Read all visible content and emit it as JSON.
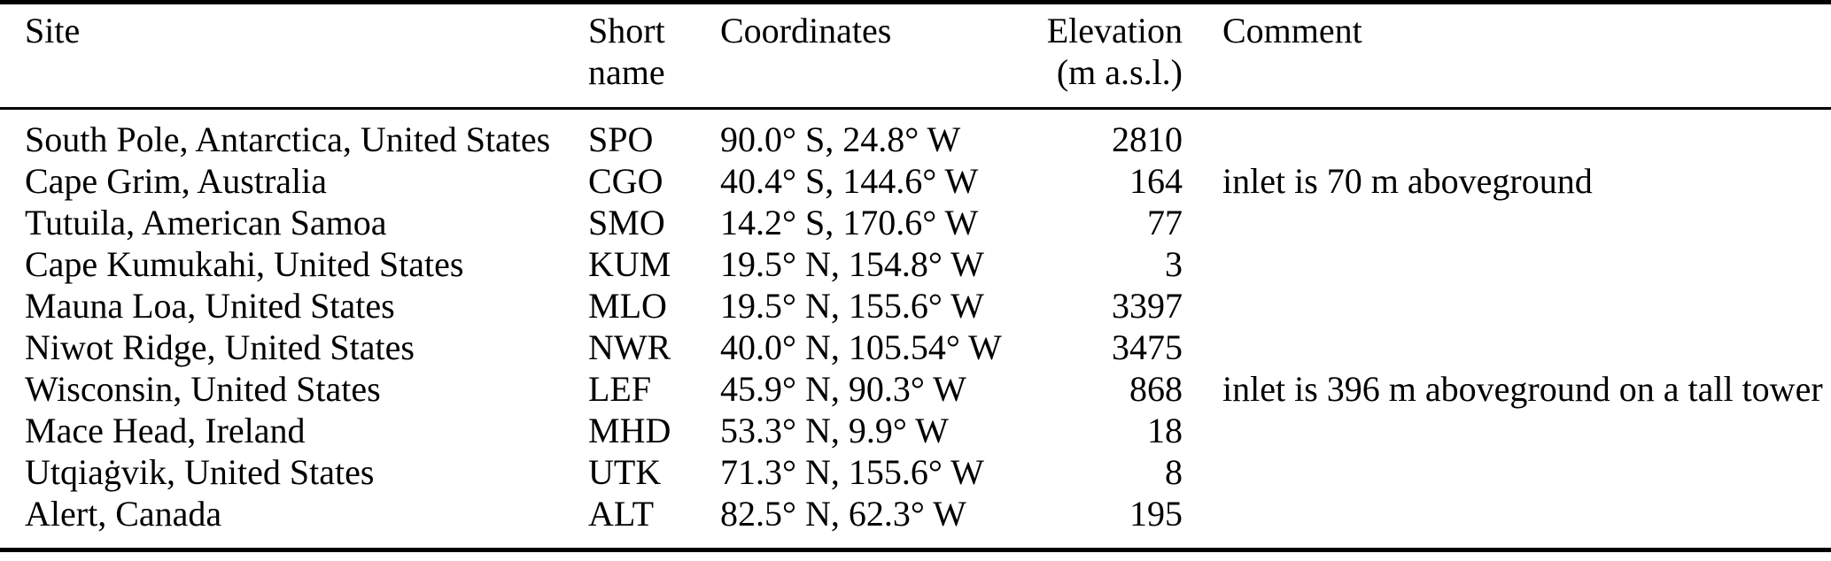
{
  "table": {
    "header": {
      "site": "Site",
      "short_name_line1": "Short",
      "short_name_line2": "name",
      "coordinates": "Coordinates",
      "elevation_line1": "Elevation",
      "elevation_line2": "(m a.s.l.)",
      "comment": "Comment"
    },
    "rows": [
      {
        "site": "South Pole, Antarctica, United States",
        "short": "SPO",
        "coords": "90.0° S, 24.8° W",
        "elev": "2810",
        "comment": ""
      },
      {
        "site": "Cape Grim, Australia",
        "short": "CGO",
        "coords": "40.4° S, 144.6° W",
        "elev": "164",
        "comment": "inlet is 70 m aboveground"
      },
      {
        "site": "Tutuila, American Samoa",
        "short": "SMO",
        "coords": "14.2° S, 170.6° W",
        "elev": "77",
        "comment": ""
      },
      {
        "site": "Cape Kumukahi, United States",
        "short": "KUM",
        "coords": "19.5° N, 154.8° W",
        "elev": "3",
        "comment": ""
      },
      {
        "site": "Mauna Loa, United States",
        "short": "MLO",
        "coords": "19.5° N, 155.6° W",
        "elev": "3397",
        "comment": ""
      },
      {
        "site": "Niwot Ridge, United States",
        "short": "NWR",
        "coords": "40.0° N, 105.54° W",
        "elev": "3475",
        "comment": ""
      },
      {
        "site": "Wisconsin, United States",
        "short": "LEF",
        "coords": "45.9° N, 90.3° W",
        "elev": "868",
        "comment": "inlet is 396 m aboveground on a tall tower"
      },
      {
        "site": "Mace Head, Ireland",
        "short": "MHD",
        "coords": "53.3° N, 9.9° W",
        "elev": "18",
        "comment": ""
      },
      {
        "site": "Utqiaġvik, United States",
        "short": "UTK",
        "coords": "71.3° N, 155.6° W",
        "elev": "8",
        "comment": ""
      },
      {
        "site": "Alert, Canada",
        "short": "ALT",
        "coords": "82.5° N, 62.3° W",
        "elev": "195",
        "comment": ""
      }
    ]
  }
}
